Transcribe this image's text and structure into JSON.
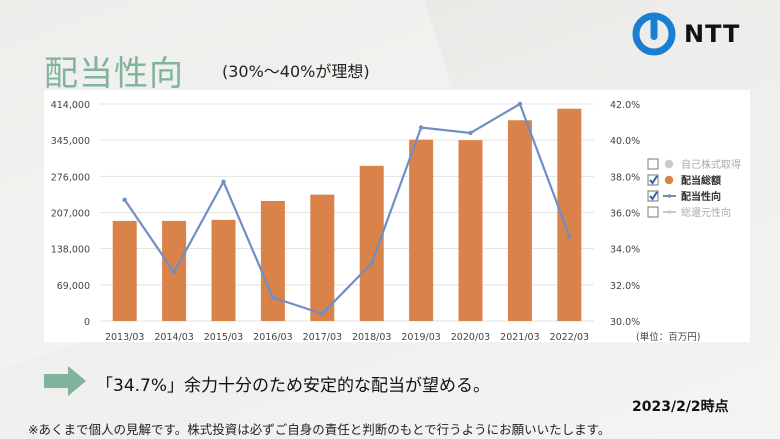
{
  "slide": {
    "title": "配当性向",
    "subtitle": "(30%〜40%が理想)",
    "logo_text": "NTT",
    "message": "「34.7%」余力十分のため安定的な配当が望める。",
    "date": "2023/2/2時点",
    "disclaimer": "※あくまで個人の見解です。株式投資は必ずご自身の責任と判断のもとで行うようにお願いいたします。"
  },
  "colors": {
    "bar": "#d9834a",
    "line": "#6f8fc4",
    "title": "#7fb39e",
    "arrow": "#7fb39e",
    "legend_check": "#2e5fa8"
  },
  "chart_data": {
    "type": "bar+line",
    "categories": [
      "2013/03",
      "2014/03",
      "2015/03",
      "2016/03",
      "2017/03",
      "2018/03",
      "2019/03",
      "2020/03",
      "2021/03",
      "2022/03"
    ],
    "series": [
      {
        "name": "配当総額",
        "type": "bar",
        "axis": "left",
        "values": [
          191000,
          191000,
          193000,
          229000,
          241000,
          296000,
          346000,
          345000,
          383000,
          405000
        ]
      },
      {
        "name": "配当性向",
        "type": "line",
        "axis": "right",
        "values": [
          36.7,
          32.7,
          37.7,
          31.3,
          30.4,
          33.2,
          40.7,
          40.4,
          42.0,
          34.7
        ]
      }
    ],
    "y_left": {
      "ticks": [
        "414,000",
        "345,000",
        "276,000",
        "207,000",
        "138,000",
        "69,000",
        "0"
      ],
      "ylim": [
        0,
        414000
      ]
    },
    "y_right": {
      "ticks": [
        "42.0%",
        "40.0%",
        "38.0%",
        "36.0%",
        "34.0%",
        "32.0%",
        "30.0%"
      ],
      "ylim": [
        30,
        42
      ]
    },
    "unit_label": "(単位：百万円)",
    "legend": [
      {
        "label": "自己株式取得",
        "checked": false,
        "marker": "circle",
        "color": "#c8c8c8"
      },
      {
        "label": "配当総額",
        "checked": true,
        "marker": "circle",
        "color": "#d9834a"
      },
      {
        "label": "配当性向",
        "checked": true,
        "marker": "line",
        "color": "#6f8fc4"
      },
      {
        "label": "総還元性向",
        "checked": false,
        "marker": "line",
        "color": "#c8c8c8"
      }
    ],
    "grid": true,
    "legend_position": "right"
  }
}
